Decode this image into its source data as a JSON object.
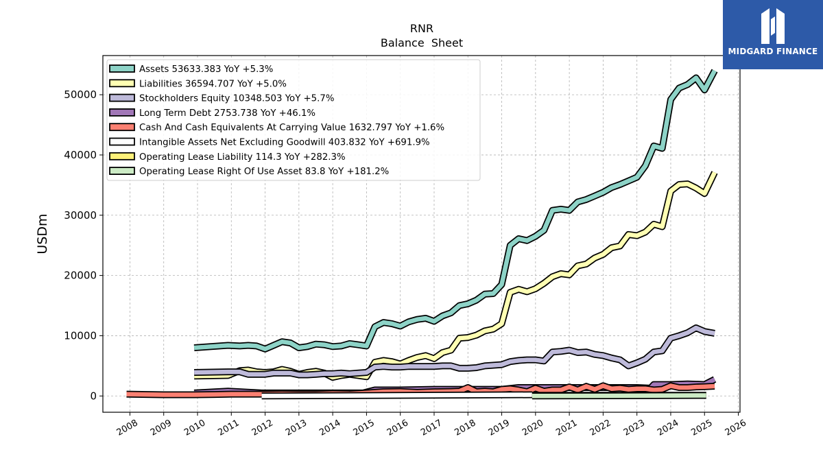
{
  "chart_data": {
    "type": "line",
    "title": "RNR",
    "subtitle": "Balance  Sheet",
    "xlabel": "",
    "ylabel": "USDm",
    "xlim": [
      2007.2,
      2026.05
    ],
    "ylim": [
      -2700,
      56500
    ],
    "xticks": [
      "2008",
      "2009",
      "2010",
      "2011",
      "2012",
      "2013",
      "2014",
      "2015",
      "2016",
      "2017",
      "2018",
      "2019",
      "2020",
      "2021",
      "2022",
      "2023",
      "2024",
      "2025",
      "2026"
    ],
    "yticks": [
      "0",
      "10000",
      "20000",
      "30000",
      "40000",
      "50000"
    ],
    "ytick_values": [
      0,
      10000,
      20000,
      30000,
      40000,
      50000
    ],
    "grid": true,
    "legend_position": "top-left",
    "series": [
      {
        "name": "Assets  53633.383 YoY +5.3%",
        "color": "#8dd3c7",
        "x": [
          2009.9,
          2010.9,
          2011.25,
          2011.5,
          2011.75,
          2012.0,
          2012.25,
          2012.5,
          2012.75,
          2013.0,
          2013.25,
          2013.5,
          2013.75,
          2014.0,
          2014.25,
          2014.5,
          2014.75,
          2015.0,
          2015.25,
          2015.5,
          2015.75,
          2016.0,
          2016.25,
          2016.5,
          2016.75,
          2017.0,
          2017.25,
          2017.5,
          2017.75,
          2018.0,
          2018.25,
          2018.5,
          2018.75,
          2019.0,
          2019.25,
          2019.5,
          2019.75,
          2020.0,
          2020.25,
          2020.5,
          2020.75,
          2021.0,
          2021.25,
          2021.5,
          2021.75,
          2022.0,
          2022.25,
          2022.5,
          2022.75,
          2023.0,
          2023.25,
          2023.5,
          2023.75,
          2024.0,
          2024.25,
          2024.5,
          2024.75,
          2025.0,
          2025.3
        ],
        "values": [
          8000,
          8400,
          8300,
          8400,
          8300,
          7800,
          8400,
          9000,
          8800,
          8000,
          8200,
          8600,
          8500,
          8200,
          8300,
          8700,
          8500,
          8300,
          11500,
          12200,
          12000,
          11600,
          12300,
          12700,
          12900,
          12400,
          13300,
          13800,
          15000,
          15300,
          15900,
          16900,
          17000,
          18500,
          25000,
          26100,
          25800,
          26500,
          27500,
          30800,
          31000,
          30800,
          32200,
          32600,
          33200,
          33800,
          34600,
          35100,
          35700,
          36300,
          38200,
          41500,
          41100,
          49200,
          51100,
          51700,
          52800,
          50800,
          54000
        ]
      },
      {
        "name": "Liabilities  36594.707 YoY +5.0%",
        "color": "#ffffb3",
        "x": [
          2009.9,
          2010.9,
          2011.25,
          2011.5,
          2011.75,
          2012.0,
          2012.25,
          2012.5,
          2012.75,
          2013.0,
          2013.25,
          2013.5,
          2013.75,
          2014.0,
          2014.25,
          2014.5,
          2014.75,
          2015.0,
          2015.25,
          2015.5,
          2015.75,
          2016.0,
          2016.25,
          2016.5,
          2016.75,
          2017.0,
          2017.25,
          2017.5,
          2017.75,
          2018.0,
          2018.25,
          2018.5,
          2018.75,
          2019.0,
          2019.25,
          2019.5,
          2019.75,
          2020.0,
          2020.25,
          2020.5,
          2020.75,
          2021.0,
          2021.25,
          2021.5,
          2021.75,
          2022.0,
          2022.25,
          2022.5,
          2022.75,
          2023.0,
          2023.25,
          2023.5,
          2023.75,
          2024.0,
          2024.25,
          2024.5,
          2024.75,
          2025.0,
          2025.3
        ],
        "values": [
          3300,
          3400,
          4200,
          4300,
          4000,
          3900,
          4000,
          4400,
          4100,
          3600,
          3900,
          4100,
          3800,
          3100,
          3400,
          3600,
          3400,
          3200,
          5600,
          5900,
          5700,
          5300,
          5900,
          6400,
          6700,
          6200,
          7200,
          7600,
          9600,
          9700,
          10100,
          10800,
          11100,
          12000,
          17200,
          17700,
          17300,
          17800,
          18700,
          19800,
          20300,
          20100,
          21600,
          21900,
          22900,
          23500,
          24600,
          24900,
          26800,
          26600,
          27200,
          28500,
          28100,
          34000,
          35100,
          35200,
          34500,
          33600,
          37100
        ]
      },
      {
        "name": "Stockholders Equity  10348.503 YoY +5.7%",
        "color": "#bebada",
        "x": [
          2009.9,
          2010.9,
          2011.25,
          2011.5,
          2011.75,
          2012.0,
          2012.25,
          2012.5,
          2012.75,
          2013.0,
          2013.25,
          2013.5,
          2013.75,
          2014.0,
          2014.25,
          2014.5,
          2014.75,
          2015.0,
          2015.25,
          2015.5,
          2015.75,
          2016.0,
          2016.25,
          2016.5,
          2016.75,
          2017.0,
          2017.25,
          2017.5,
          2017.75,
          2018.0,
          2018.25,
          2018.5,
          2018.75,
          2019.0,
          2019.25,
          2019.5,
          2019.75,
          2020.0,
          2020.25,
          2020.5,
          2020.75,
          2021.0,
          2021.25,
          2021.5,
          2021.75,
          2022.0,
          2022.25,
          2022.5,
          2022.75,
          2023.0,
          2023.25,
          2023.5,
          2023.75,
          2024.0,
          2024.25,
          2024.5,
          2024.75,
          2025.0,
          2025.3
        ],
        "values": [
          3900,
          4000,
          4000,
          3600,
          3600,
          3600,
          3800,
          3800,
          3800,
          3500,
          3500,
          3600,
          3700,
          3700,
          3800,
          3700,
          3800,
          3900,
          4800,
          4900,
          4800,
          4800,
          4900,
          4900,
          4900,
          4900,
          5000,
          5000,
          4600,
          4600,
          4700,
          5000,
          5100,
          5200,
          5700,
          5900,
          6000,
          6000,
          5800,
          7300,
          7400,
          7600,
          7200,
          7300,
          6900,
          6700,
          6300,
          6000,
          5000,
          5500,
          6100,
          7300,
          7500,
          9600,
          10000,
          10500,
          11300,
          10700,
          10400
        ]
      },
      {
        "name": "Long Term Debt  2753.738 YoY +46.1%",
        "color": "#a177b7",
        "x": [
          2009.9,
          2010.9,
          2011.9,
          2012.9,
          2013.9,
          2014.9,
          2015.25,
          2016.0,
          2017.0,
          2018.0,
          2019.0,
          2019.5,
          2020.0,
          2021.0,
          2022.0,
          2023.0,
          2023.4,
          2023.5,
          2024.0,
          2024.5,
          2025.0,
          2025.3
        ],
        "values": [
          500,
          800,
          500,
          500,
          500,
          500,
          1000,
          1000,
          1100,
          1100,
          1100,
          1400,
          1400,
          1400,
          1400,
          1400,
          1300,
          1900,
          1900,
          2000,
          1900,
          2750
        ]
      },
      {
        "name": "Cash And Cash Equivalents At Carrying Value  1632.797 YoY +1.6%",
        "color": "#fb8072",
        "x": [
          2007.9,
          2008.5,
          2009.0,
          2009.5,
          2009.9,
          2010.5,
          2011.0,
          2011.5,
          2012.0,
          2012.5,
          2013.0,
          2013.5,
          2014.0,
          2014.5,
          2015.0,
          2015.5,
          2016.0,
          2016.5,
          2017.0,
          2017.5,
          2017.75,
          2018.0,
          2018.25,
          2018.5,
          2018.75,
          2019.0,
          2019.25,
          2019.5,
          2019.75,
          2020.0,
          2020.25,
          2020.5,
          2020.75,
          2021.0,
          2021.25,
          2021.5,
          2021.75,
          2022.0,
          2022.25,
          2022.5,
          2022.75,
          2023.0,
          2023.25,
          2023.5,
          2023.75,
          2024.0,
          2024.25,
          2024.5,
          2024.75,
          2025.0,
          2025.3
        ],
        "values": [
          300,
          250,
          200,
          200,
          200,
          250,
          300,
          300,
          300,
          350,
          300,
          300,
          400,
          350,
          500,
          700,
          750,
          600,
          700,
          750,
          800,
          1400,
          700,
          800,
          700,
          1100,
          1200,
          1000,
          700,
          1300,
          800,
          1000,
          1000,
          1500,
          1000,
          1600,
          1100,
          1700,
          1200,
          1300,
          1100,
          1200,
          1200,
          1000,
          1100,
          1700,
          1400,
          1400,
          1500,
          1550,
          1630
        ]
      },
      {
        "name": "Intangible Assets Net Excluding Goodwill  403.832 YoY +691.9%",
        "color": "#ffffff",
        "x": [
          2011.9,
          2019.9
        ],
        "values": [
          0,
          200
        ]
      },
      {
        "name": "Operating Lease Liability  114.3 YoY +282.3%",
        "color": "#fff27a",
        "x": [
          2019.9,
          2025.05
        ],
        "values": [
          100,
          120
        ]
      },
      {
        "name": "Operating Lease Right Of Use Asset  83.8 YoY +181.2%",
        "color": "#ccebc5",
        "x": [
          2019.9,
          2025.05
        ],
        "values": [
          0,
          90
        ]
      }
    ]
  },
  "logo": {
    "text": "MIDGARD FINANCE",
    "color": "#2d5aa8"
  }
}
